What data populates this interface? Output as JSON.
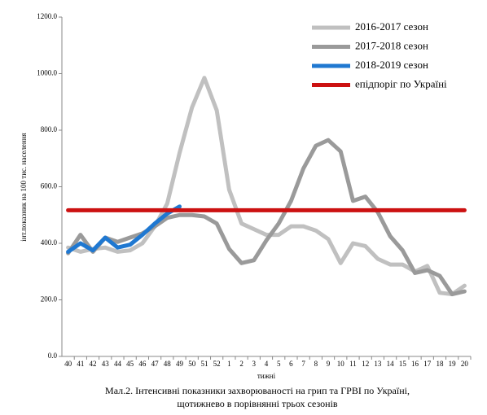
{
  "chart_data": {
    "type": "line",
    "categories": [
      "40",
      "41",
      "42",
      "43",
      "44",
      "45",
      "46",
      "47",
      "48",
      "49",
      "50",
      "51",
      "52",
      "1",
      "2",
      "3",
      "4",
      "5",
      "6",
      "7",
      "8",
      "9",
      "10",
      "11",
      "12",
      "13",
      "14",
      "15",
      "16",
      "17",
      "18",
      "19",
      "20"
    ],
    "series": [
      {
        "name": "2016-2017 сезон",
        "color": "#c0c0c0",
        "values": [
          385,
          370,
          380,
          385,
          370,
          375,
          400,
          460,
          540,
          720,
          880,
          985,
          870,
          590,
          470,
          450,
          430,
          430,
          460,
          460,
          445,
          415,
          330,
          400,
          390,
          345,
          325,
          325,
          300,
          320,
          225,
          220,
          250
        ]
      },
      {
        "name": "2017-2018 сезон",
        "color": "#9a9a9a",
        "values": [
          365,
          430,
          370,
          420,
          405,
          420,
          435,
          460,
          490,
          500,
          500,
          495,
          470,
          380,
          330,
          340,
          410,
          470,
          550,
          665,
          745,
          765,
          725,
          550,
          565,
          510,
          425,
          375,
          295,
          305,
          285,
          220,
          230
        ]
      },
      {
        "name": "2018-2019 сезон",
        "color": "#1f78d1",
        "values": [
          370,
          400,
          375,
          420,
          385,
          395,
          430,
          470,
          505,
          530,
          null,
          null,
          null,
          null,
          null,
          null,
          null,
          null,
          null,
          null,
          null,
          null,
          null,
          null,
          null,
          null,
          null,
          null,
          null,
          null,
          null,
          null,
          null
        ]
      },
      {
        "name": "епідпоріг по Україні",
        "color": "#cc1111",
        "values": [
          517,
          517,
          517,
          517,
          517,
          517,
          517,
          517,
          517,
          517,
          517,
          517,
          517,
          517,
          517,
          517,
          517,
          517,
          517,
          517,
          517,
          517,
          517,
          517,
          517,
          517,
          517,
          517,
          517,
          517,
          517,
          517,
          517
        ]
      }
    ],
    "ylim": [
      0,
      1200
    ],
    "yticks": [
      {
        "value": 0,
        "label": "0.0"
      },
      {
        "value": 200,
        "label": "200.0"
      },
      {
        "value": 400,
        "label": "400.0"
      },
      {
        "value": 600,
        "label": "600.0"
      },
      {
        "value": 800,
        "label": "800.0"
      },
      {
        "value": 1000,
        "label": "1000.0"
      },
      {
        "value": 1200,
        "label": "1200.0"
      }
    ],
    "y_label": "інт.показник на 100 тис. населення",
    "x_label": "тижні",
    "caption": [
      "Мал.2. Інтенсивні показники захворюваності на грип та ГРВІ по Україні,",
      "щотижнево в порівнянні трьох сезонів"
    ],
    "legend": "upper right"
  }
}
